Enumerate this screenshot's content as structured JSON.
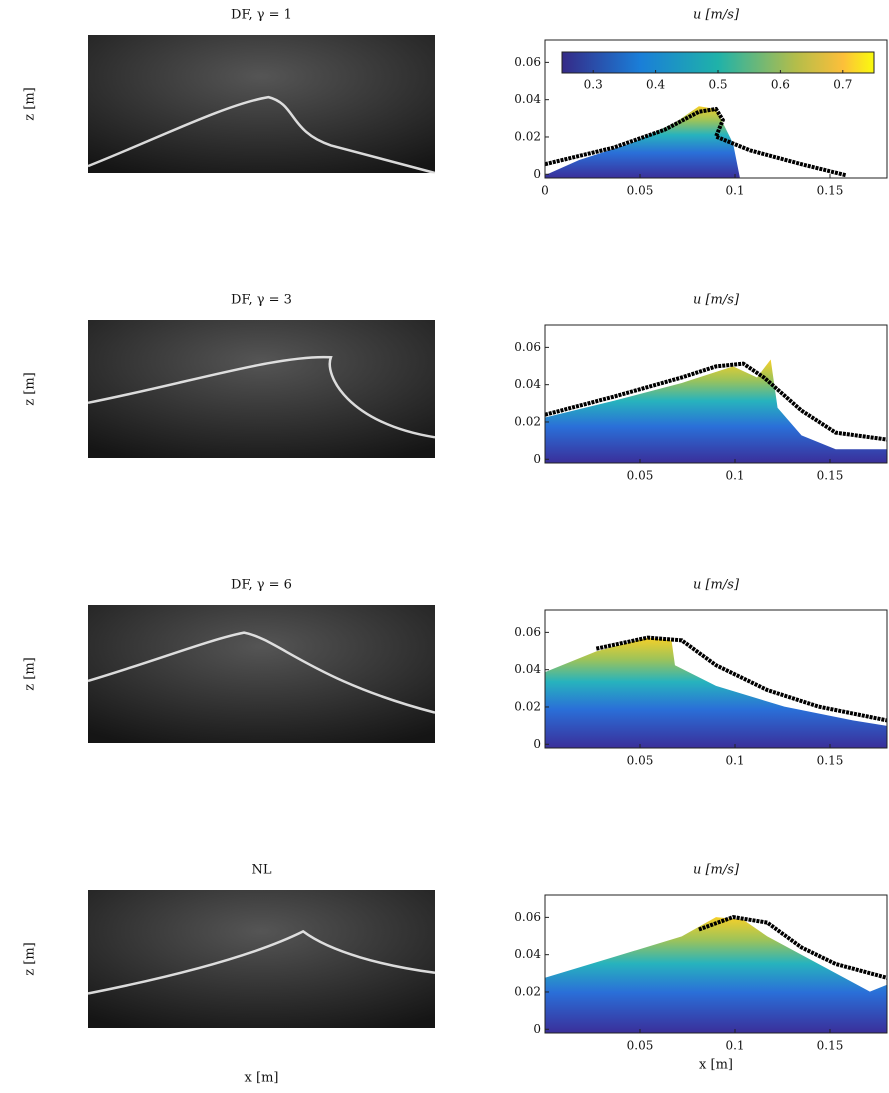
{
  "chart_data": [
    {
      "type": "image",
      "title": "DF, γ = 1",
      "ylabel": "z [m]"
    },
    {
      "type": "heatmap",
      "title": "u [m/s]",
      "xlim": [
        0,
        0.18
      ],
      "ylim": [
        -0.002,
        0.072
      ],
      "xticks": [
        0,
        0.05,
        0.1,
        0.15
      ],
      "yticks": [
        0,
        0.02,
        0.04,
        0.06
      ],
      "colorbar": {
        "lim": [
          0.25,
          0.75
        ],
        "ticks": [
          0.3,
          0.4,
          0.5,
          0.6,
          0.7
        ]
      }
    },
    {
      "type": "image",
      "title": "DF, γ = 3",
      "ylabel": "z [m]"
    },
    {
      "type": "heatmap",
      "title": "u [m/s]",
      "xlim": [
        0,
        0.18
      ],
      "ylim": [
        -0.002,
        0.072
      ],
      "xticks": [
        0.05,
        0.1,
        0.15
      ],
      "yticks": [
        0,
        0.02,
        0.04,
        0.06
      ]
    },
    {
      "type": "image",
      "title": "DF, γ = 6",
      "ylabel": "z [m]"
    },
    {
      "type": "heatmap",
      "title": "u [m/s]",
      "xlim": [
        0,
        0.18
      ],
      "ylim": [
        -0.002,
        0.072
      ],
      "xticks": [
        0.05,
        0.1,
        0.15
      ],
      "yticks": [
        0,
        0.02,
        0.04,
        0.06
      ]
    },
    {
      "type": "image",
      "title": "NL",
      "ylabel": "z [m]",
      "xlabel": "x [m]"
    },
    {
      "type": "heatmap",
      "title": "u [m/s]",
      "xlim": [
        0,
        0.18
      ],
      "ylim": [
        -0.002,
        0.072
      ],
      "xticks": [
        0.05,
        0.1,
        0.15
      ],
      "yticks": [
        0,
        0.02,
        0.04,
        0.06
      ],
      "xlabel": "x [m]"
    }
  ]
}
